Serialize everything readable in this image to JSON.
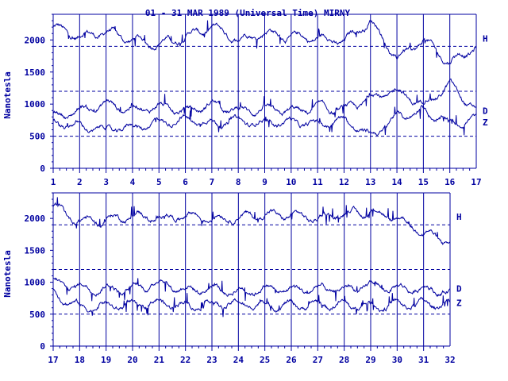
{
  "title": "01 - 31 MAR 1989 (Universal Time) MIRNY",
  "colors": {
    "ink": "#0000a0",
    "background": "#ffffff"
  },
  "chart_data": [
    {
      "type": "line",
      "panel": "top",
      "ylabel": "Nanotesla",
      "ylim": [
        0,
        2400
      ],
      "yticks": [
        0,
        500,
        1000,
        1500,
        2000
      ],
      "xlim": [
        1,
        17
      ],
      "xticks": [
        1,
        2,
        3,
        4,
        5,
        6,
        7,
        8,
        9,
        10,
        11,
        12,
        13,
        14,
        15,
        16,
        17
      ],
      "dashed_reference_levels": [
        1900,
        1200,
        500
      ],
      "series": [
        {
          "name": "H",
          "baseline": 2020,
          "values": [
            2200,
            2050,
            2130,
            2000,
            1940,
            2050,
            2200,
            2010,
            2110,
            2050,
            2030,
            1980,
            2300,
            1700,
            2000,
            1650,
            1900
          ]
        },
        {
          "name": "D",
          "baseline": 900,
          "values": [
            800,
            900,
            1000,
            920,
            960,
            880,
            1000,
            900,
            920,
            880,
            950,
            900,
            1100,
            1200,
            1000,
            1300,
            900
          ]
        },
        {
          "name": "Z",
          "baseline": 720,
          "values": [
            700,
            650,
            600,
            640,
            720,
            760,
            700,
            730,
            700,
            720,
            680,
            760,
            500,
            800,
            900,
            700,
            760
          ]
        }
      ],
      "grid": "vertical lines at each day"
    },
    {
      "type": "line",
      "panel": "bottom",
      "ylabel": "Nanotesla",
      "ylim": [
        0,
        2400
      ],
      "yticks": [
        0,
        500,
        1000,
        1500,
        2000
      ],
      "xlim": [
        17,
        32
      ],
      "xticks": [
        17,
        18,
        19,
        20,
        21,
        22,
        23,
        24,
        25,
        26,
        27,
        28,
        29,
        30,
        31,
        32
      ],
      "dashed_reference_levels": [
        1900,
        1200,
        500
      ],
      "series": [
        {
          "name": "H",
          "baseline": 2030,
          "values": [
            2200,
            1950,
            1980,
            2040,
            2000,
            2060,
            2000,
            2020,
            2060,
            2050,
            2000,
            2080,
            2100,
            2000,
            1800,
            1600
          ]
        },
        {
          "name": "D",
          "baseline": 900,
          "values": [
            1000,
            920,
            900,
            880,
            1000,
            880,
            900,
            850,
            900,
            880,
            900,
            880,
            950,
            900,
            900,
            850
          ]
        },
        {
          "name": "Z",
          "baseline": 680,
          "values": [
            850,
            600,
            640,
            620,
            680,
            640,
            660,
            650,
            650,
            640,
            650,
            640,
            620,
            650,
            660,
            650
          ]
        }
      ],
      "grid": "vertical lines at each day"
    }
  ]
}
